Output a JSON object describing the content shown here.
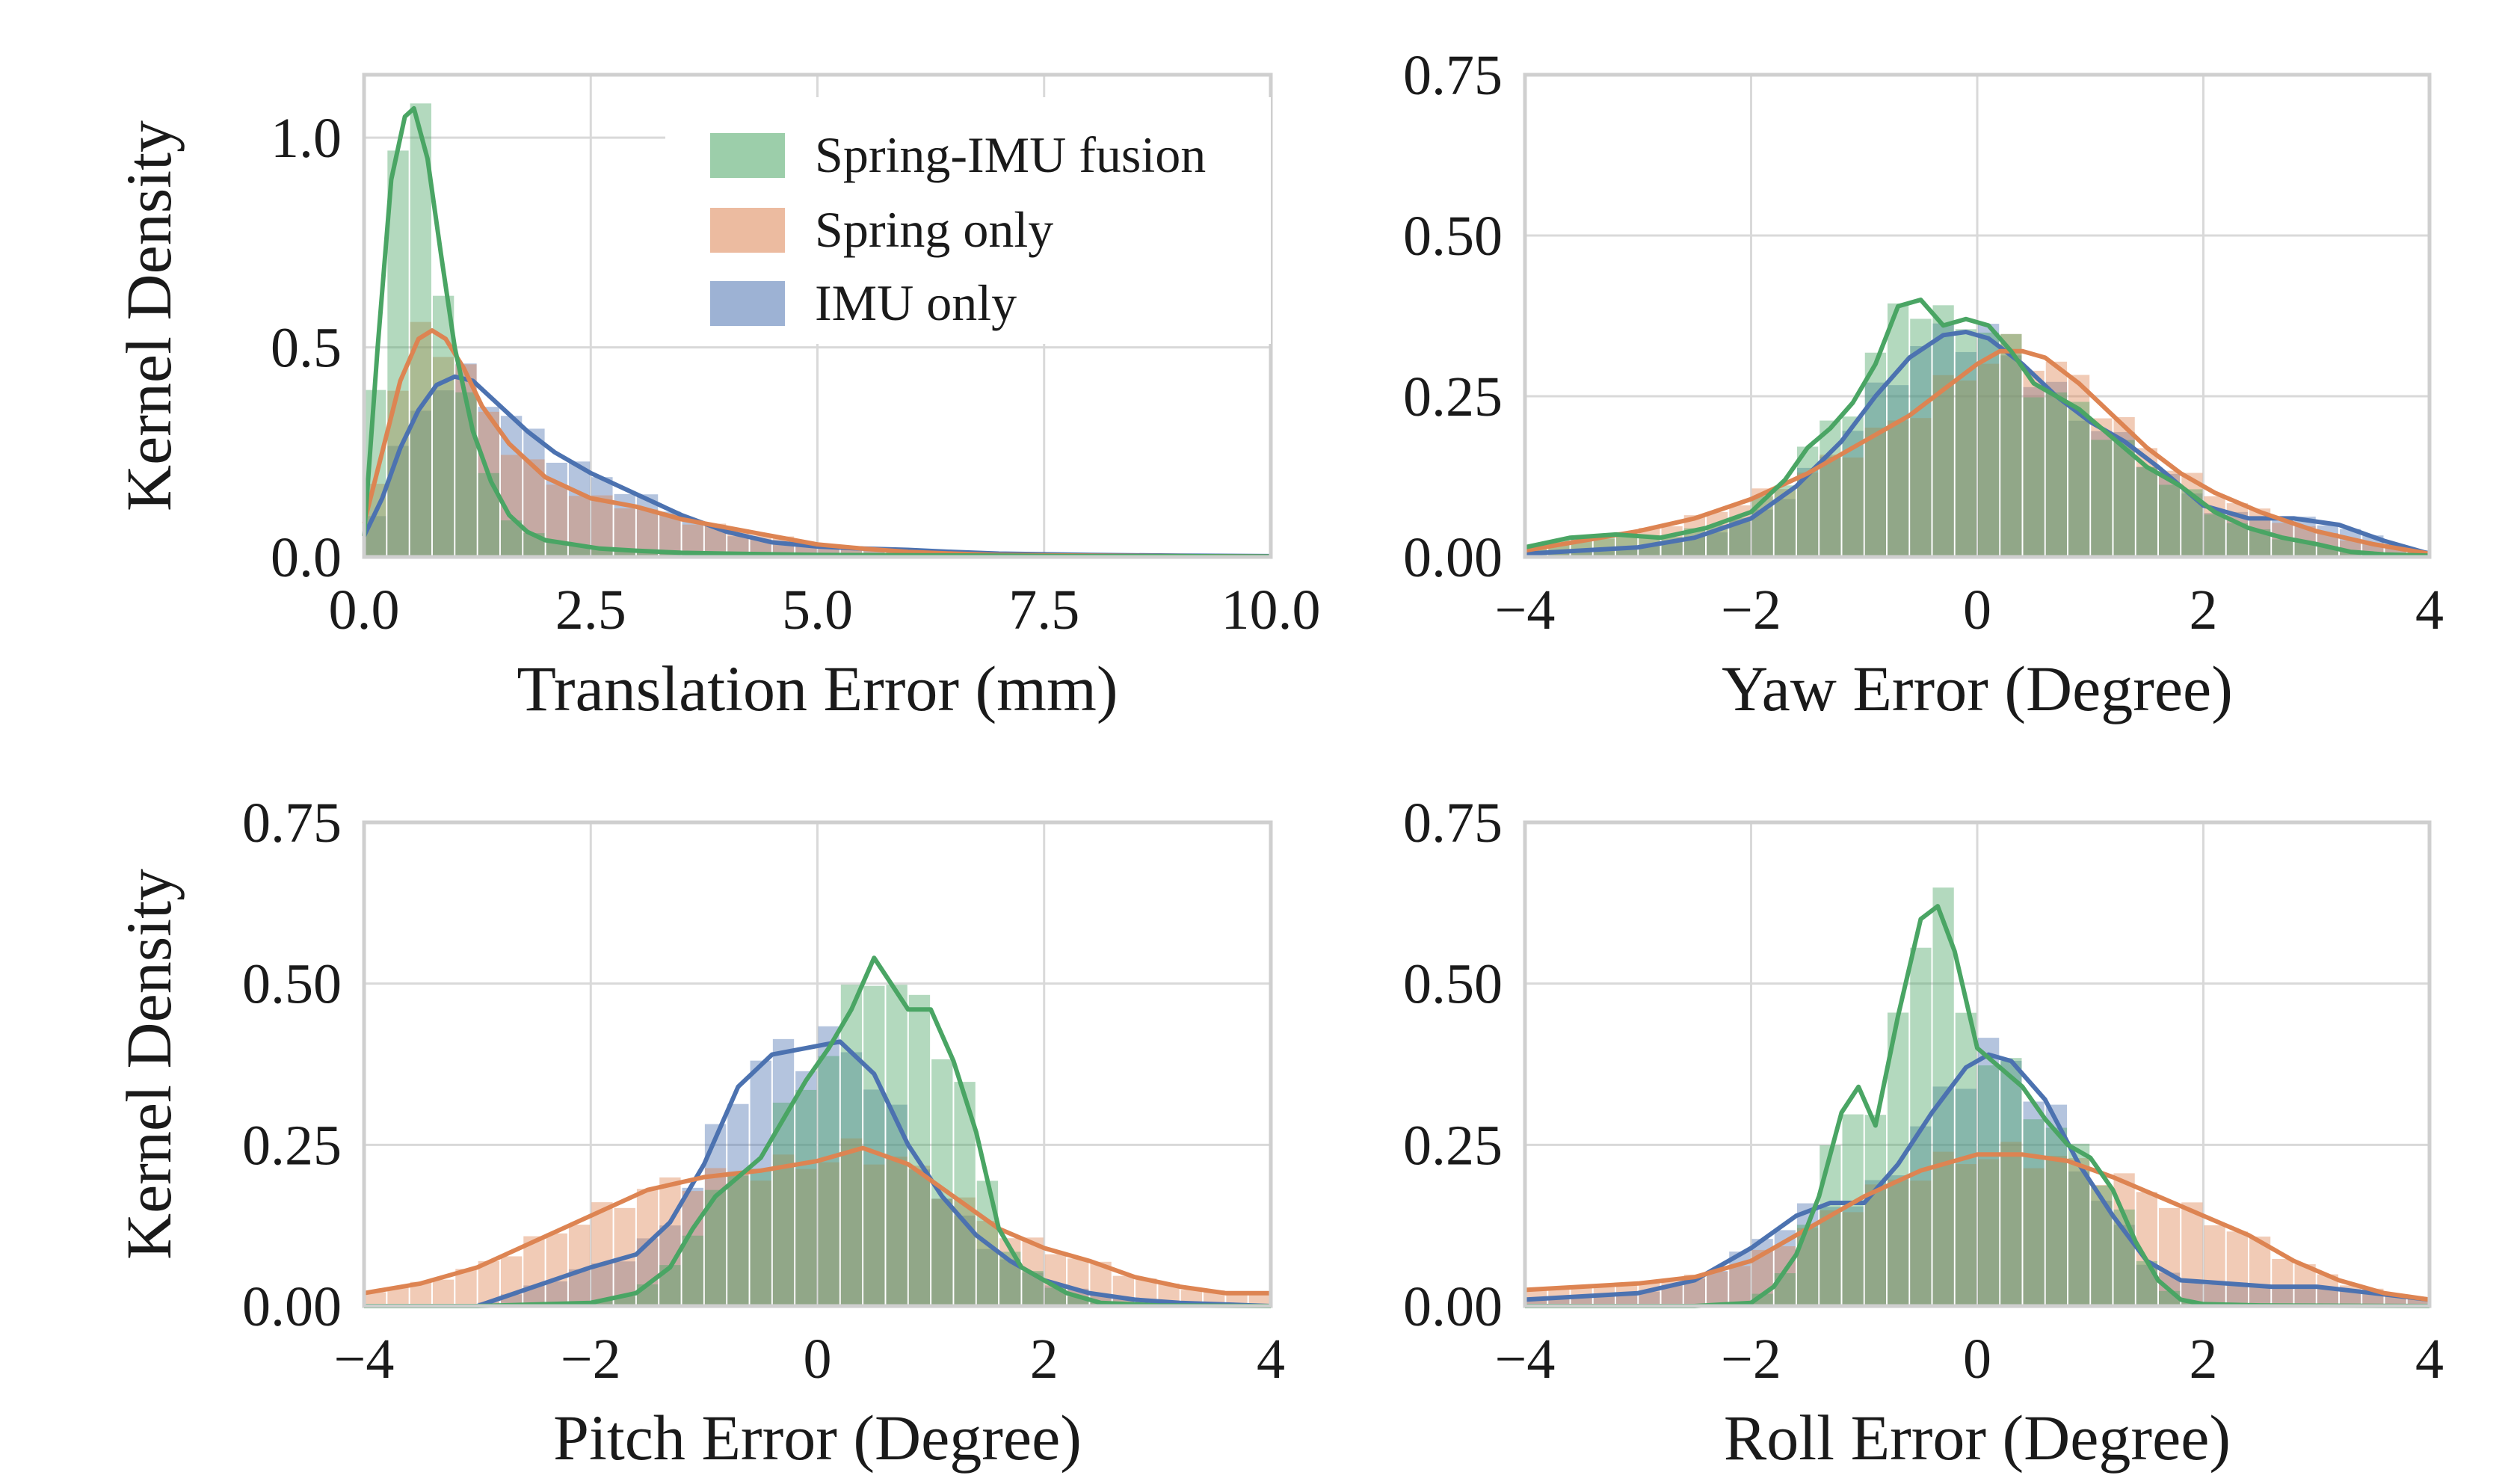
{
  "colors": {
    "fusion": "#4aa564",
    "spring": "#dd8452",
    "imu": "#4c72b0",
    "grid": "#d9d9d9",
    "spine": "#cfcfcf"
  },
  "legend": {
    "entries": [
      {
        "key": "fusion",
        "label": "Spring-IMU fusion"
      },
      {
        "key": "spring",
        "label": "Spring only"
      },
      {
        "key": "imu",
        "label": "IMU only"
      }
    ]
  },
  "chart_data": [
    {
      "id": "translation",
      "type": "area",
      "title": "",
      "xlabel": "Translation Error (mm)",
      "ylabel": "Kernel Density",
      "xlim": [
        0,
        10
      ],
      "ylim": [
        0,
        1.15
      ],
      "xticks": [
        0,
        2.5,
        5,
        7.5,
        10
      ],
      "xtick_labels": [
        "0.0",
        "2.5",
        "5.0",
        "7.5",
        "10.0"
      ],
      "yticks": [
        0,
        0.5,
        1.0
      ],
      "ytick_labels": [
        "0.0",
        "0.5",
        "1.0"
      ],
      "grid": true,
      "legend": "top-right",
      "series": [
        {
          "key": "fusion",
          "name": "Spring-IMU fusion",
          "x": [
            0,
            0.15,
            0.3,
            0.45,
            0.55,
            0.7,
            0.85,
            1.0,
            1.2,
            1.4,
            1.6,
            1.8,
            2.0,
            2.3,
            2.6,
            3.0,
            3.5,
            4.0,
            5.0,
            6.0,
            7.0,
            8.0,
            9.0,
            10.0
          ],
          "y": [
            0.05,
            0.5,
            0.9,
            1.05,
            1.07,
            0.95,
            0.72,
            0.5,
            0.3,
            0.18,
            0.1,
            0.06,
            0.04,
            0.03,
            0.02,
            0.015,
            0.01,
            0.008,
            0.005,
            0.004,
            0.003,
            0.002,
            0.002,
            0.001
          ]
        },
        {
          "key": "spring",
          "name": "Spring only",
          "x": [
            0,
            0.2,
            0.4,
            0.6,
            0.75,
            0.9,
            1.1,
            1.3,
            1.6,
            2.0,
            2.5,
            3.0,
            3.5,
            4.0,
            4.5,
            5.0,
            5.5,
            6.0,
            6.5,
            7.0,
            8.0,
            9.0,
            10.0
          ],
          "y": [
            0.08,
            0.25,
            0.42,
            0.52,
            0.54,
            0.52,
            0.45,
            0.36,
            0.27,
            0.19,
            0.14,
            0.12,
            0.09,
            0.07,
            0.05,
            0.03,
            0.02,
            0.012,
            0.008,
            0.005,
            0.003,
            0.002,
            0.001
          ]
        },
        {
          "key": "imu",
          "name": "IMU only",
          "x": [
            0,
            0.2,
            0.4,
            0.6,
            0.8,
            1.0,
            1.2,
            1.5,
            1.8,
            2.1,
            2.5,
            3.0,
            3.5,
            4.0,
            4.5,
            5.0,
            5.5,
            6.0,
            6.5,
            7.0,
            8.0,
            9.0,
            10.0
          ],
          "y": [
            0.05,
            0.14,
            0.26,
            0.35,
            0.41,
            0.43,
            0.42,
            0.36,
            0.3,
            0.25,
            0.2,
            0.15,
            0.1,
            0.06,
            0.035,
            0.025,
            0.02,
            0.017,
            0.012,
            0.008,
            0.005,
            0.003,
            0.002
          ]
        }
      ]
    },
    {
      "id": "yaw",
      "type": "area",
      "title": "",
      "xlabel": "Yaw Error (Degree)",
      "ylabel": "",
      "xlim": [
        -4,
        4
      ],
      "ylim": [
        0,
        0.75
      ],
      "xticks": [
        -4,
        -2,
        0,
        2,
        4
      ],
      "xtick_labels": [
        "−4",
        "−2",
        "0",
        "2",
        "4"
      ],
      "yticks": [
        0,
        0.25,
        0.5,
        0.75
      ],
      "ytick_labels": [
        "0.00",
        "0.25",
        "0.50",
        "0.75"
      ],
      "grid": true,
      "series": [
        {
          "key": "fusion",
          "name": "Spring-IMU fusion",
          "x": [
            -4,
            -3.6,
            -3.2,
            -2.8,
            -2.4,
            -2.0,
            -1.7,
            -1.5,
            -1.3,
            -1.1,
            -0.9,
            -0.7,
            -0.5,
            -0.3,
            -0.1,
            0.1,
            0.3,
            0.5,
            0.7,
            0.9,
            1.1,
            1.3,
            1.5,
            1.8,
            2.1,
            2.4,
            2.7,
            3.0,
            3.3,
            3.6,
            4.0
          ],
          "y": [
            0.015,
            0.03,
            0.035,
            0.03,
            0.045,
            0.07,
            0.12,
            0.17,
            0.2,
            0.24,
            0.3,
            0.39,
            0.4,
            0.36,
            0.37,
            0.36,
            0.32,
            0.27,
            0.25,
            0.23,
            0.2,
            0.17,
            0.14,
            0.11,
            0.07,
            0.045,
            0.03,
            0.02,
            0.008,
            0.004,
            0.002
          ]
        },
        {
          "key": "spring",
          "name": "Spring only",
          "x": [
            -4,
            -3.5,
            -3.0,
            -2.5,
            -2.0,
            -1.5,
            -1.0,
            -0.6,
            -0.3,
            0.0,
            0.2,
            0.4,
            0.6,
            0.9,
            1.2,
            1.5,
            1.8,
            2.1,
            2.5,
            3.0,
            3.5,
            4.0
          ],
          "y": [
            0.01,
            0.025,
            0.04,
            0.06,
            0.09,
            0.13,
            0.18,
            0.22,
            0.26,
            0.3,
            0.32,
            0.32,
            0.31,
            0.27,
            0.22,
            0.17,
            0.13,
            0.1,
            0.07,
            0.04,
            0.02,
            0.005
          ]
        },
        {
          "key": "imu",
          "name": "IMU only",
          "x": [
            -4,
            -3.5,
            -3.0,
            -2.5,
            -2.0,
            -1.6,
            -1.2,
            -0.9,
            -0.6,
            -0.3,
            -0.1,
            0.1,
            0.4,
            0.7,
            1.0,
            1.3,
            1.6,
            2.0,
            2.4,
            2.8,
            3.2,
            3.6,
            4.0
          ],
          "y": [
            0.005,
            0.01,
            0.015,
            0.03,
            0.06,
            0.11,
            0.18,
            0.25,
            0.31,
            0.345,
            0.35,
            0.34,
            0.3,
            0.25,
            0.21,
            0.18,
            0.14,
            0.08,
            0.06,
            0.06,
            0.05,
            0.025,
            0.005
          ]
        }
      ]
    },
    {
      "id": "pitch",
      "type": "area",
      "title": "",
      "xlabel": "Pitch Error (Degree)",
      "ylabel": "Kernel Density",
      "xlim": [
        -4,
        4
      ],
      "ylim": [
        0,
        0.75
      ],
      "xticks": [
        -4,
        -2,
        0,
        2,
        4
      ],
      "xtick_labels": [
        "−4",
        "−2",
        "0",
        "2",
        "4"
      ],
      "yticks": [
        0,
        0.25,
        0.5,
        0.75
      ],
      "ytick_labels": [
        "0.00",
        "0.25",
        "0.50",
        "0.75"
      ],
      "grid": true,
      "series": [
        {
          "key": "fusion",
          "name": "Spring-IMU fusion",
          "x": [
            -4,
            -3.0,
            -2.0,
            -1.6,
            -1.3,
            -1.1,
            -0.9,
            -0.7,
            -0.5,
            -0.3,
            -0.1,
            0.1,
            0.3,
            0.5,
            0.65,
            0.8,
            1.0,
            1.2,
            1.4,
            1.6,
            1.8,
            2.0,
            2.2,
            2.5,
            3.0,
            4.0
          ],
          "y": [
            0.0,
            0.0,
            0.005,
            0.02,
            0.06,
            0.12,
            0.17,
            0.2,
            0.23,
            0.29,
            0.35,
            0.4,
            0.46,
            0.54,
            0.5,
            0.46,
            0.46,
            0.38,
            0.27,
            0.12,
            0.06,
            0.04,
            0.02,
            0.005,
            0.001,
            0.0
          ]
        },
        {
          "key": "spring",
          "name": "Spring only",
          "x": [
            -4,
            -3.5,
            -3.0,
            -2.5,
            -2.0,
            -1.5,
            -1.0,
            -0.5,
            0.0,
            0.4,
            0.8,
            1.2,
            1.6,
            2.0,
            2.4,
            2.8,
            3.2,
            3.6,
            4.0
          ],
          "y": [
            0.02,
            0.035,
            0.06,
            0.1,
            0.14,
            0.18,
            0.2,
            0.21,
            0.225,
            0.245,
            0.22,
            0.17,
            0.12,
            0.09,
            0.07,
            0.045,
            0.03,
            0.02,
            0.02
          ]
        },
        {
          "key": "imu",
          "name": "IMU only",
          "x": [
            -4,
            -3.0,
            -2.5,
            -2.0,
            -1.6,
            -1.3,
            -1.0,
            -0.7,
            -0.4,
            -0.1,
            0.2,
            0.5,
            0.8,
            1.1,
            1.4,
            1.7,
            2.0,
            2.4,
            2.8,
            3.2,
            4.0
          ],
          "y": [
            0.0,
            0.0,
            0.03,
            0.06,
            0.08,
            0.13,
            0.22,
            0.34,
            0.39,
            0.4,
            0.41,
            0.36,
            0.25,
            0.17,
            0.11,
            0.07,
            0.04,
            0.02,
            0.01,
            0.005,
            0.0
          ]
        }
      ]
    },
    {
      "id": "roll",
      "type": "area",
      "title": "",
      "xlabel": "Roll Error (Degree)",
      "ylabel": "",
      "xlim": [
        -4,
        4
      ],
      "ylim": [
        0,
        0.75
      ],
      "xticks": [
        -4,
        -2,
        0,
        2,
        4
      ],
      "xtick_labels": [
        "−4",
        "−2",
        "0",
        "2",
        "4"
      ],
      "yticks": [
        0,
        0.25,
        0.5,
        0.75
      ],
      "ytick_labels": [
        "0.00",
        "0.25",
        "0.50",
        "0.75"
      ],
      "grid": true,
      "series": [
        {
          "key": "fusion",
          "name": "Spring-IMU fusion",
          "x": [
            -4,
            -2.5,
            -2.0,
            -1.8,
            -1.6,
            -1.4,
            -1.2,
            -1.05,
            -0.9,
            -0.7,
            -0.5,
            -0.35,
            -0.2,
            0.0,
            0.2,
            0.4,
            0.6,
            0.8,
            1.0,
            1.2,
            1.4,
            1.6,
            1.8,
            2.0,
            2.5,
            4.0
          ],
          "y": [
            0.0,
            0.0,
            0.005,
            0.03,
            0.08,
            0.17,
            0.3,
            0.34,
            0.28,
            0.45,
            0.6,
            0.62,
            0.55,
            0.4,
            0.37,
            0.34,
            0.29,
            0.25,
            0.23,
            0.18,
            0.1,
            0.04,
            0.01,
            0.003,
            0.001,
            0.0
          ]
        },
        {
          "key": "spring",
          "name": "Spring only",
          "x": [
            -4,
            -3.5,
            -3.0,
            -2.5,
            -2.0,
            -1.5,
            -1.0,
            -0.5,
            0.0,
            0.4,
            0.8,
            1.2,
            1.6,
            2.0,
            2.4,
            2.8,
            3.2,
            3.6,
            4.0
          ],
          "y": [
            0.025,
            0.03,
            0.035,
            0.045,
            0.07,
            0.12,
            0.17,
            0.21,
            0.235,
            0.235,
            0.225,
            0.2,
            0.17,
            0.14,
            0.11,
            0.07,
            0.04,
            0.02,
            0.01
          ]
        },
        {
          "key": "imu",
          "name": "IMU only",
          "x": [
            -4,
            -3.0,
            -2.5,
            -2.0,
            -1.6,
            -1.3,
            -1.0,
            -0.7,
            -0.4,
            -0.1,
            0.1,
            0.3,
            0.6,
            0.9,
            1.2,
            1.5,
            1.8,
            2.2,
            2.6,
            3.0,
            3.5,
            4.0
          ],
          "y": [
            0.01,
            0.02,
            0.04,
            0.09,
            0.14,
            0.16,
            0.16,
            0.22,
            0.3,
            0.37,
            0.39,
            0.38,
            0.32,
            0.22,
            0.14,
            0.07,
            0.04,
            0.035,
            0.03,
            0.03,
            0.02,
            0.01
          ]
        }
      ]
    }
  ]
}
